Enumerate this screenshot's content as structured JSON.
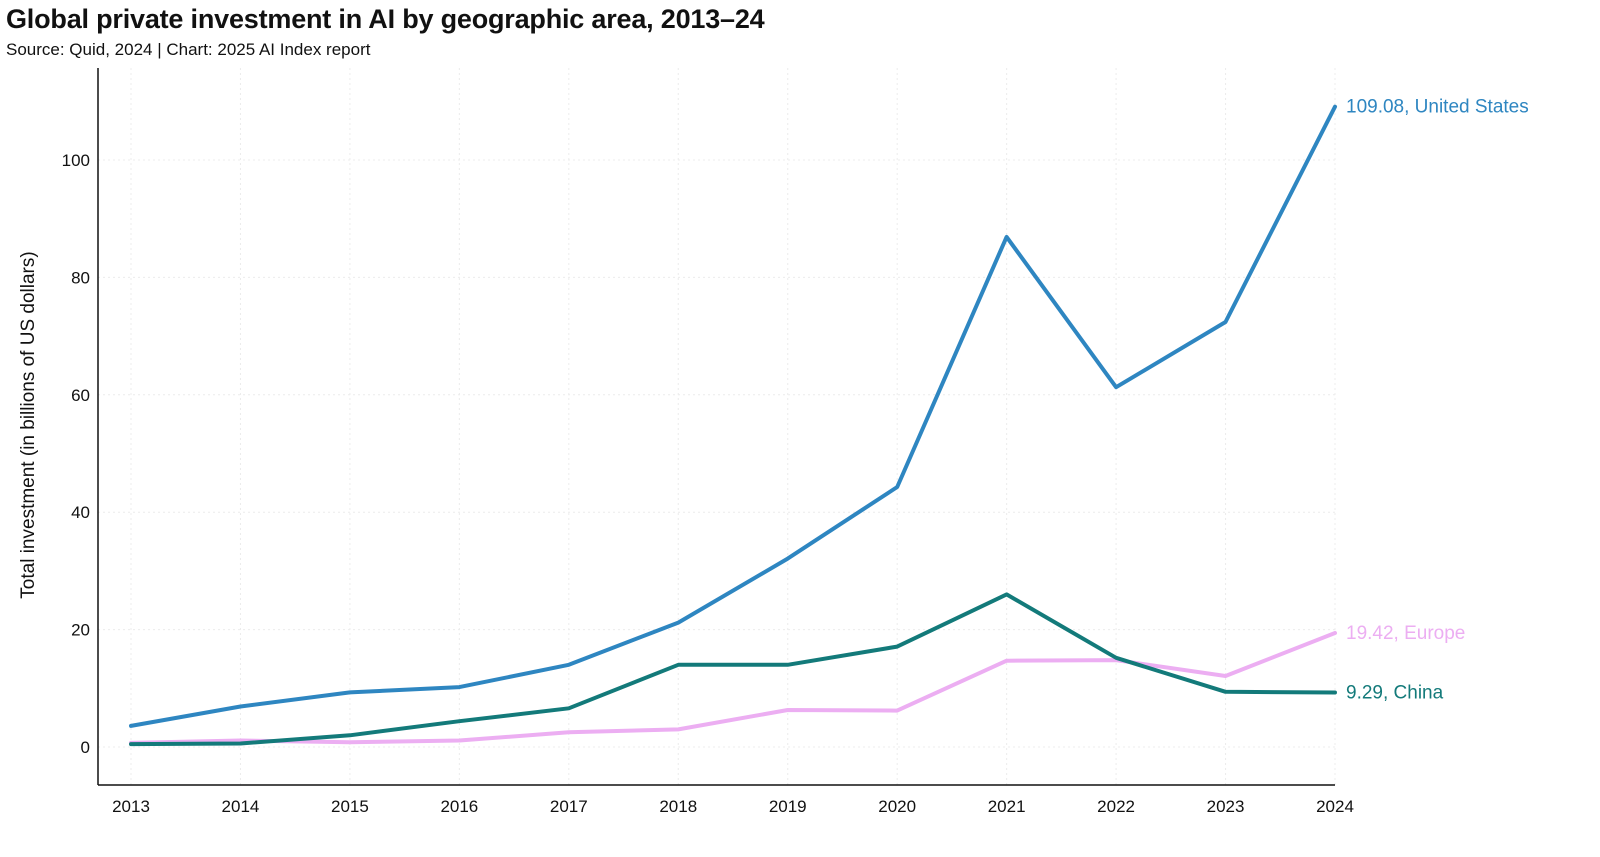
{
  "chart_data": {
    "type": "line",
    "title": "Global private investment in AI by geographic area, 2013–24",
    "subtitle": "Source: Quid, 2024 | Chart: 2025 AI Index report",
    "xlabel": "",
    "ylabel": "Total investment (in billions of US dollars)",
    "ylim": [
      -6,
      113
    ],
    "yticks": [
      0,
      20,
      40,
      60,
      80,
      100
    ],
    "x": [
      2013,
      2014,
      2015,
      2016,
      2017,
      2018,
      2019,
      2020,
      2021,
      2022,
      2023,
      2024
    ],
    "series": [
      {
        "name": "United States",
        "color": "#2e86c1",
        "end_label": "109.08, United States",
        "values": [
          3.6,
          6.9,
          9.3,
          10.2,
          14.0,
          21.2,
          32.1,
          44.3,
          86.9,
          61.3,
          72.4,
          109.08
        ]
      },
      {
        "name": "China",
        "color": "#137a7a",
        "end_label": "9.29, China",
        "values": [
          0.5,
          0.6,
          2.0,
          4.4,
          6.6,
          14.0,
          14.0,
          17.1,
          26.0,
          15.2,
          9.4,
          9.29
        ]
      },
      {
        "name": "Europe",
        "color": "#ecaef2",
        "end_label": "19.42, Europe",
        "values": [
          0.7,
          1.1,
          0.8,
          1.1,
          2.5,
          3.0,
          6.3,
          6.2,
          14.7,
          14.8,
          12.1,
          19.42
        ]
      }
    ]
  }
}
